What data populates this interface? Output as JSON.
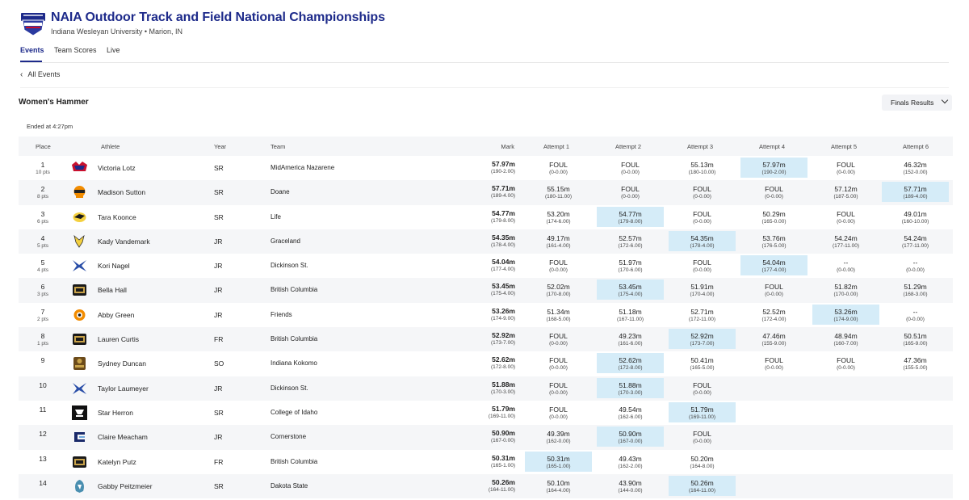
{
  "header": {
    "title": "NAIA Outdoor Track and Field National Championships",
    "subtitle": "Indiana Wesleyan University • Marion, IN"
  },
  "tabs": [
    {
      "label": "Events",
      "active": true
    },
    {
      "label": "Team Scores",
      "active": false
    },
    {
      "label": "Live",
      "active": false
    }
  ],
  "back_link": "All Events",
  "event": {
    "title": "Women's Hammer",
    "status": "Ended at 4:27pm",
    "view_select": "Finals Results"
  },
  "columns": [
    "Place",
    "Athlete",
    "Year",
    "Team",
    "Mark",
    "Attempt 1",
    "Attempt 2",
    "Attempt 3",
    "Attempt 4",
    "Attempt 5",
    "Attempt 6"
  ],
  "colors": {
    "brand": "#1d2a8a",
    "best_attempt": "#d5ecf8",
    "row_alt": "#f5f6f8"
  },
  "results": [
    {
      "place": "1",
      "pts": "10 pts",
      "athlete": "Victoria Lotz",
      "year": "SR",
      "team": "MidAmerica Nazarene",
      "logo": "mnu-logo",
      "mark": "57.97m",
      "mark_ft": "(190-2.00)",
      "attempts": [
        {
          "m": "FOUL",
          "f": "(0-0.00)"
        },
        {
          "m": "FOUL",
          "f": "(0-0.00)"
        },
        {
          "m": "55.13m",
          "f": "(180-10.00)"
        },
        {
          "m": "57.97m",
          "f": "(190-2.00)",
          "best": true
        },
        {
          "m": "FOUL",
          "f": "(0-0.00)"
        },
        {
          "m": "46.32m",
          "f": "(152-0.00)"
        }
      ]
    },
    {
      "place": "2",
      "pts": "8 pts",
      "athlete": "Madison Sutton",
      "year": "SR",
      "team": "Doane",
      "logo": "doane-logo",
      "mark": "57.71m",
      "mark_ft": "(189-4.00)",
      "attempts": [
        {
          "m": "55.15m",
          "f": "(180-11.00)"
        },
        {
          "m": "FOUL",
          "f": "(0-0.00)"
        },
        {
          "m": "FOUL",
          "f": "(0-0.00)"
        },
        {
          "m": "FOUL",
          "f": "(0-0.00)"
        },
        {
          "m": "57.12m",
          "f": "(187-5.00)"
        },
        {
          "m": "57.71m",
          "f": "(189-4.00)",
          "best": true
        }
      ]
    },
    {
      "place": "3",
      "pts": "6 pts",
      "athlete": "Tara Koonce",
      "year": "SR",
      "team": "Life",
      "logo": "life-logo",
      "mark": "54.77m",
      "mark_ft": "(179-8.00)",
      "attempts": [
        {
          "m": "53.20m",
          "f": "(174-6.00)"
        },
        {
          "m": "54.77m",
          "f": "(179-8.00)",
          "best": true
        },
        {
          "m": "FOUL",
          "f": "(0-0.00)"
        },
        {
          "m": "50.29m",
          "f": "(165-0.00)"
        },
        {
          "m": "FOUL",
          "f": "(0-0.00)"
        },
        {
          "m": "49.01m",
          "f": "(160-10.00)"
        }
      ]
    },
    {
      "place": "4",
      "pts": "5 pts",
      "athlete": "Kady Vandemark",
      "year": "JR",
      "team": "Graceland",
      "logo": "graceland-logo",
      "mark": "54.35m",
      "mark_ft": "(178-4.00)",
      "attempts": [
        {
          "m": "49.17m",
          "f": "(161-4.00)"
        },
        {
          "m": "52.57m",
          "f": "(172-6.00)"
        },
        {
          "m": "54.35m",
          "f": "(178-4.00)",
          "best": true
        },
        {
          "m": "53.76m",
          "f": "(176-5.00)"
        },
        {
          "m": "54.24m",
          "f": "(177-11.00)"
        },
        {
          "m": "54.24m",
          "f": "(177-11.00)"
        }
      ]
    },
    {
      "place": "5",
      "pts": "4 pts",
      "athlete": "Kori Nagel",
      "year": "JR",
      "team": "Dickinson St.",
      "logo": "dickinson-logo",
      "mark": "54.04m",
      "mark_ft": "(177-4.00)",
      "attempts": [
        {
          "m": "FOUL",
          "f": "(0-0.00)"
        },
        {
          "m": "51.97m",
          "f": "(170-6.00)"
        },
        {
          "m": "FOUL",
          "f": "(0-0.00)"
        },
        {
          "m": "54.04m",
          "f": "(177-4.00)",
          "best": true
        },
        {
          "m": "--",
          "f": "(0-0.00)"
        },
        {
          "m": "--",
          "f": "(0-0.00)"
        }
      ]
    },
    {
      "place": "6",
      "pts": "3 pts",
      "athlete": "Bella Hall",
      "year": "JR",
      "team": "British Columbia",
      "logo": "ubc-logo",
      "mark": "53.45m",
      "mark_ft": "(175-4.00)",
      "attempts": [
        {
          "m": "52.02m",
          "f": "(170-8.00)"
        },
        {
          "m": "53.45m",
          "f": "(175-4.00)",
          "best": true
        },
        {
          "m": "51.91m",
          "f": "(170-4.00)"
        },
        {
          "m": "FOUL",
          "f": "(0-0.00)"
        },
        {
          "m": "51.82m",
          "f": "(170-0.00)"
        },
        {
          "m": "51.29m",
          "f": "(168-3.00)"
        }
      ]
    },
    {
      "place": "7",
      "pts": "2 pts",
      "athlete": "Abby Green",
      "year": "JR",
      "team": "Friends",
      "logo": "friends-logo",
      "mark": "53.26m",
      "mark_ft": "(174-9.00)",
      "attempts": [
        {
          "m": "51.34m",
          "f": "(168-5.00)"
        },
        {
          "m": "51.18m",
          "f": "(167-11.00)"
        },
        {
          "m": "52.71m",
          "f": "(172-11.00)"
        },
        {
          "m": "52.52m",
          "f": "(172-4.00)"
        },
        {
          "m": "53.26m",
          "f": "(174-9.00)",
          "best": true
        },
        {
          "m": "--",
          "f": "(0-0.00)"
        }
      ]
    },
    {
      "place": "8",
      "pts": "1 pts",
      "athlete": "Lauren Curtis",
      "year": "FR",
      "team": "British Columbia",
      "logo": "ubc-logo",
      "mark": "52.92m",
      "mark_ft": "(173-7.00)",
      "attempts": [
        {
          "m": "FOUL",
          "f": "(0-0.00)"
        },
        {
          "m": "49.23m",
          "f": "(161-6.00)"
        },
        {
          "m": "52.92m",
          "f": "(173-7.00)",
          "best": true
        },
        {
          "m": "47.46m",
          "f": "(155-9.00)"
        },
        {
          "m": "48.94m",
          "f": "(160-7.00)"
        },
        {
          "m": "50.51m",
          "f": "(165-9.00)"
        }
      ]
    },
    {
      "place": "9",
      "pts": "",
      "athlete": "Sydney Duncan",
      "year": "SO",
      "team": "Indiana Kokomo",
      "logo": "kokomo-logo",
      "mark": "52.62m",
      "mark_ft": "(172-8.00)",
      "attempts": [
        {
          "m": "FOUL",
          "f": "(0-0.00)"
        },
        {
          "m": "52.62m",
          "f": "(172-8.00)",
          "best": true
        },
        {
          "m": "50.41m",
          "f": "(165-5.00)"
        },
        {
          "m": "FOUL",
          "f": "(0-0.00)"
        },
        {
          "m": "FOUL",
          "f": "(0-0.00)"
        },
        {
          "m": "47.36m",
          "f": "(155-5.00)"
        }
      ]
    },
    {
      "place": "10",
      "pts": "",
      "athlete": "Taylor Laumeyer",
      "year": "JR",
      "team": "Dickinson St.",
      "logo": "dickinson-logo",
      "mark": "51.88m",
      "mark_ft": "(170-3.00)",
      "attempts": [
        {
          "m": "FOUL",
          "f": "(0-0.00)"
        },
        {
          "m": "51.88m",
          "f": "(170-3.00)",
          "best": true
        },
        {
          "m": "FOUL",
          "f": "(0-0.00)"
        }
      ]
    },
    {
      "place": "11",
      "pts": "",
      "athlete": "Star Herron",
      "year": "SR",
      "team": "College of Idaho",
      "logo": "idaho-logo",
      "mark": "51.79m",
      "mark_ft": "(169-11.00)",
      "attempts": [
        {
          "m": "FOUL",
          "f": "(0-0.00)"
        },
        {
          "m": "49.54m",
          "f": "(162-6.00)"
        },
        {
          "m": "51.79m",
          "f": "(169-11.00)",
          "best": true
        }
      ]
    },
    {
      "place": "12",
      "pts": "",
      "athlete": "Claire Meacham",
      "year": "JR",
      "team": "Cornerstone",
      "logo": "cornerstone-logo",
      "mark": "50.90m",
      "mark_ft": "(167-0.00)",
      "attempts": [
        {
          "m": "49.39m",
          "f": "(162-0.00)"
        },
        {
          "m": "50.90m",
          "f": "(167-0.00)",
          "best": true
        },
        {
          "m": "FOUL",
          "f": "(0-0.00)"
        }
      ]
    },
    {
      "place": "13",
      "pts": "",
      "athlete": "Katelyn Putz",
      "year": "FR",
      "team": "British Columbia",
      "logo": "ubc-logo",
      "mark": "50.31m",
      "mark_ft": "(165-1.00)",
      "attempts": [
        {
          "m": "50.31m",
          "f": "(165-1.00)",
          "best": true
        },
        {
          "m": "49.43m",
          "f": "(162-2.00)"
        },
        {
          "m": "50.20m",
          "f": "(164-8.00)"
        }
      ]
    },
    {
      "place": "14",
      "pts": "",
      "athlete": "Gabby Peitzmeier",
      "year": "SR",
      "team": "Dakota State",
      "logo": "dakota-state-logo",
      "mark": "50.26m",
      "mark_ft": "(164-11.00)",
      "attempts": [
        {
          "m": "50.10m",
          "f": "(164-4.00)"
        },
        {
          "m": "43.90m",
          "f": "(144-0.00)"
        },
        {
          "m": "50.26m",
          "f": "(164-11.00)",
          "best": true
        }
      ]
    }
  ]
}
